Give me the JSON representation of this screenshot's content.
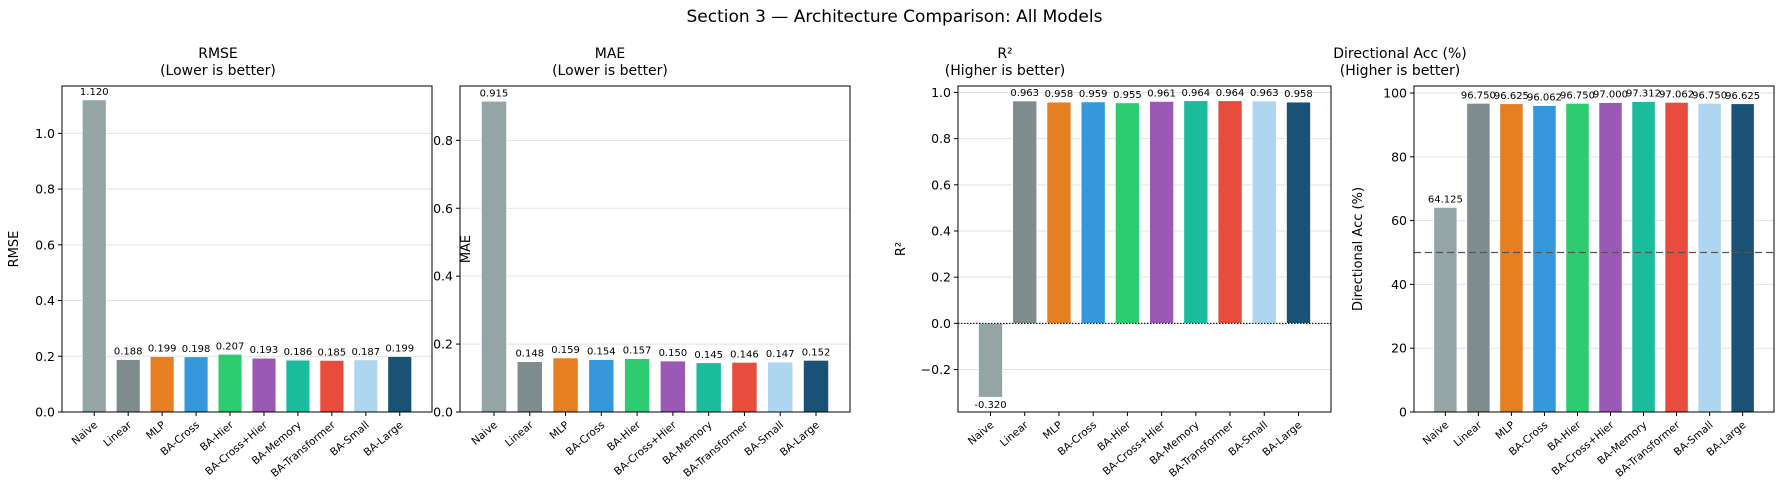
{
  "figure": {
    "suptitle": "Section 3 — Architecture Comparison: All Models"
  },
  "models": [
    "Naive",
    "Linear",
    "MLP",
    "BA-Cross",
    "BA-Hier",
    "BA-Cross+Hier",
    "BA-Memory",
    "BA-Transformer",
    "BA-Small",
    "BA-Large"
  ],
  "colors": [
    "#95a5a6",
    "#7f8c8d",
    "#e67e22",
    "#3498db",
    "#2ecc71",
    "#9b59b6",
    "#1abc9c",
    "#e74c3c",
    "#aed6f1",
    "#1a5276"
  ],
  "chart_data": [
    {
      "type": "bar",
      "title": "RMSE",
      "subtitle": "(Lower is better)",
      "ylabel": "RMSE",
      "categories": [
        "Naive",
        "Linear",
        "MLP",
        "BA-Cross",
        "BA-Hier",
        "BA-Cross+Hier",
        "BA-Memory",
        "BA-Transformer",
        "BA-Small",
        "BA-Large"
      ],
      "values": [
        1.12,
        0.188,
        0.199,
        0.198,
        0.207,
        0.193,
        0.186,
        0.185,
        0.187,
        0.199
      ],
      "value_labels": [
        "1.120",
        "0.188",
        "0.199",
        "0.198",
        "0.207",
        "0.193",
        "0.186",
        "0.185",
        "0.187",
        "0.199"
      ],
      "ylim": [
        0,
        1.17
      ],
      "yticks": [
        0.0,
        0.2,
        0.4,
        0.6,
        0.8,
        1.0
      ],
      "ytick_labels": [
        "0.0",
        "0.2",
        "0.4",
        "0.6",
        "0.8",
        "1.0"
      ],
      "grid": "y"
    },
    {
      "type": "bar",
      "title": "MAE",
      "subtitle": "(Lower is better)",
      "ylabel": "MAE",
      "categories": [
        "Naive",
        "Linear",
        "MLP",
        "BA-Cross",
        "BA-Hier",
        "BA-Cross+Hier",
        "BA-Memory",
        "BA-Transformer",
        "BA-Small",
        "BA-Large"
      ],
      "values": [
        0.915,
        0.148,
        0.159,
        0.154,
        0.157,
        0.15,
        0.145,
        0.146,
        0.147,
        0.152
      ],
      "value_labels": [
        "0.915",
        "0.148",
        "0.159",
        "0.154",
        "0.157",
        "0.150",
        "0.145",
        "0.146",
        "0.147",
        "0.152"
      ],
      "ylim": [
        0,
        0.96
      ],
      "yticks": [
        0.0,
        0.2,
        0.4,
        0.6,
        0.8
      ],
      "ytick_labels": [
        "0.0",
        "0.2",
        "0.4",
        "0.6",
        "0.8"
      ],
      "grid": "y"
    },
    {
      "type": "bar",
      "title": "R²",
      "subtitle": "(Higher is better)",
      "ylabel": "R²",
      "categories": [
        "Naive",
        "Linear",
        "MLP",
        "BA-Cross",
        "BA-Hier",
        "BA-Cross+Hier",
        "BA-Memory",
        "BA-Transformer",
        "BA-Small",
        "BA-Large"
      ],
      "values": [
        -0.32,
        0.963,
        0.958,
        0.959,
        0.955,
        0.961,
        0.964,
        0.964,
        0.963,
        0.958
      ],
      "value_labels": [
        "-0.320",
        "0.963",
        "0.958",
        "0.959",
        "0.955",
        "0.961",
        "0.964",
        "0.964",
        "0.963",
        "0.958"
      ],
      "ylim": [
        -0.384,
        1.028
      ],
      "yticks": [
        -0.2,
        0.0,
        0.2,
        0.4,
        0.6,
        0.8,
        1.0
      ],
      "ytick_labels": [
        "−0.2",
        "0.0",
        "0.2",
        "0.4",
        "0.6",
        "0.8",
        "1.0"
      ],
      "zero_line": true,
      "grid": "y"
    },
    {
      "type": "bar",
      "title": "Directional Acc (%)",
      "subtitle": "(Higher is better)",
      "ylabel": "Directional Acc (%)",
      "categories": [
        "Naive",
        "Linear",
        "MLP",
        "BA-Cross",
        "BA-Hier",
        "BA-Cross+Hier",
        "BA-Memory",
        "BA-Transformer",
        "BA-Small",
        "BA-Large"
      ],
      "values": [
        64.125,
        96.75,
        96.625,
        96.062,
        96.75,
        97.0,
        97.312,
        97.062,
        96.75,
        96.625
      ],
      "value_labels": [
        "64.125",
        "96.750",
        "96.625",
        "96.062",
        "96.750",
        "97.000",
        "97.312",
        "97.062",
        "96.750",
        "96.625"
      ],
      "ylim": [
        0,
        102.2
      ],
      "yticks": [
        0,
        20,
        40,
        60,
        80,
        100
      ],
      "ytick_labels": [
        "0",
        "20",
        "40",
        "60",
        "80",
        "100"
      ],
      "reference_line": 50,
      "grid": "y"
    }
  ]
}
